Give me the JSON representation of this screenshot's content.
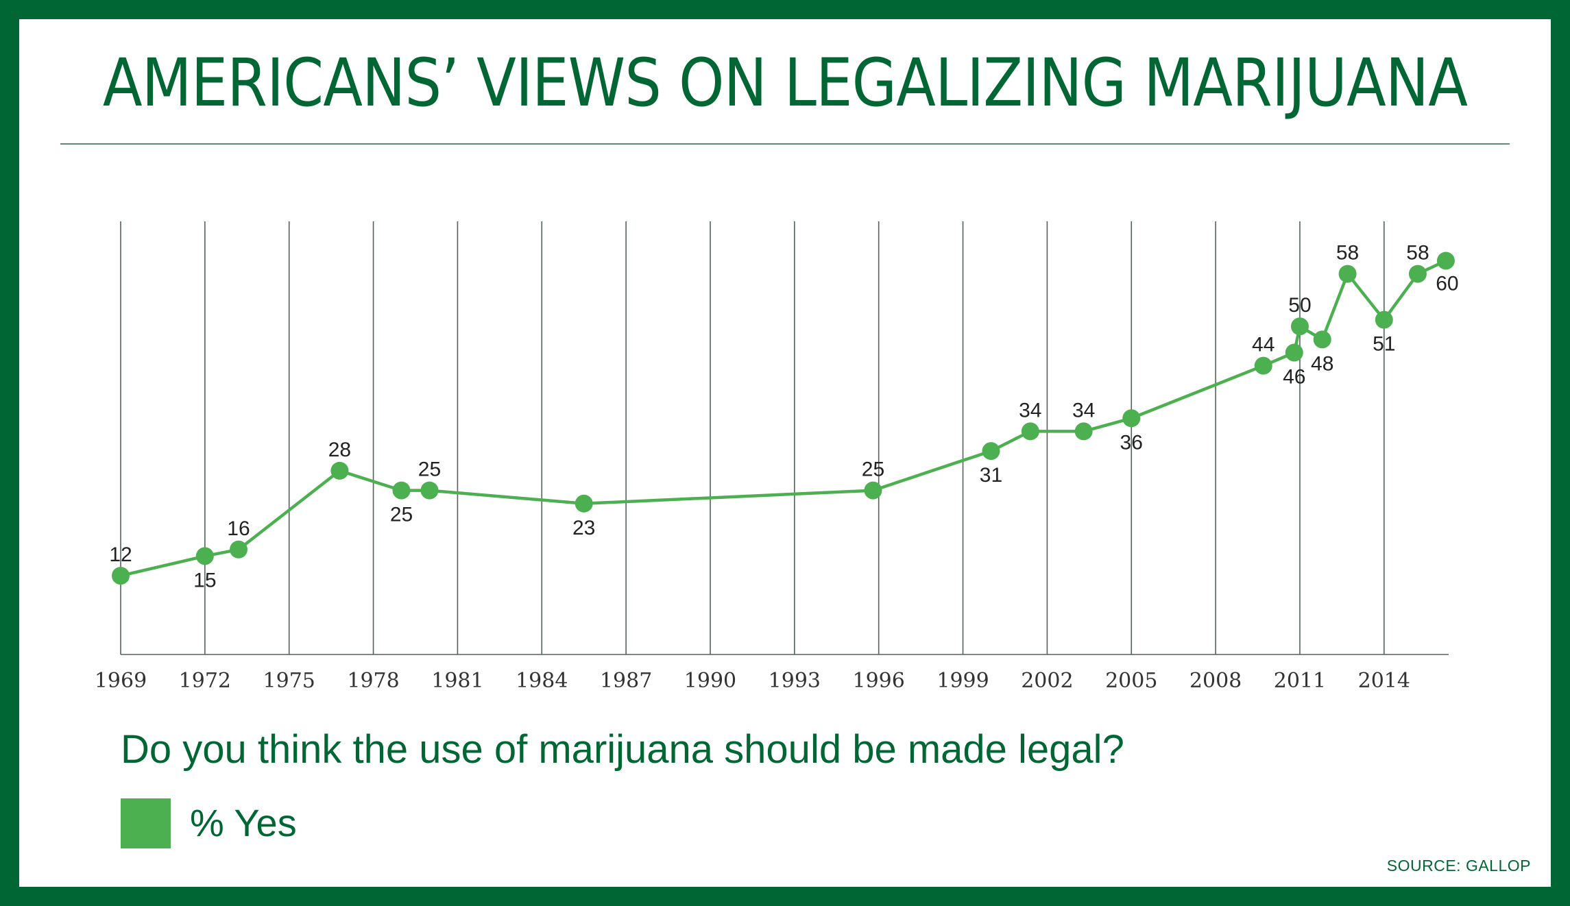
{
  "title": "AMERICANS’ VIEWS ON LEGALIZING MARIJUANA",
  "question": "Do you think the use of marijuana should be made legal?",
  "legend": {
    "label": "% Yes",
    "color": "#4caf50"
  },
  "source": "SOURCE: GALLOP",
  "colors": {
    "frame": "#006633",
    "line": "#4caf50",
    "grid": "#54615a",
    "text": "#006633"
  },
  "chart_data": {
    "type": "line",
    "title": "AMERICANS’ VIEWS ON LEGALIZING MARIJUANA",
    "xlabel": "",
    "ylabel": "",
    "x_ticks": [
      1969,
      1972,
      1975,
      1978,
      1981,
      1984,
      1987,
      1990,
      1993,
      1996,
      1999,
      2002,
      2005,
      2008,
      2011,
      2014
    ],
    "xlim": [
      1969,
      2016.3
    ],
    "ylim": [
      0,
      66
    ],
    "grid": "vertical",
    "legend_position": "bottom-left",
    "series": [
      {
        "name": "% Yes",
        "color": "#4caf50",
        "points": [
          {
            "x": 1969.0,
            "y": 12,
            "label": "12",
            "label_pos": "above"
          },
          {
            "x": 1972.0,
            "y": 15,
            "label": "15",
            "label_pos": "below"
          },
          {
            "x": 1973.2,
            "y": 16,
            "label": "16",
            "label_pos": "above"
          },
          {
            "x": 1976.8,
            "y": 28,
            "label": "28",
            "label_pos": "above"
          },
          {
            "x": 1979.0,
            "y": 25,
            "label": "25",
            "label_pos": "below"
          },
          {
            "x": 1980.0,
            "y": 25,
            "label": "25",
            "label_pos": "above"
          },
          {
            "x": 1985.5,
            "y": 23,
            "label": "23",
            "label_pos": "below"
          },
          {
            "x": 1995.8,
            "y": 25,
            "label": "25",
            "label_pos": "above"
          },
          {
            "x": 2000.0,
            "y": 31,
            "label": "31",
            "label_pos": "below"
          },
          {
            "x": 2001.4,
            "y": 34,
            "label": "34",
            "label_pos": "above"
          },
          {
            "x": 2003.3,
            "y": 34,
            "label": "34",
            "label_pos": "above"
          },
          {
            "x": 2005.0,
            "y": 36,
            "label": "36",
            "label_pos": "below"
          },
          {
            "x": 2009.7,
            "y": 44,
            "label": "44",
            "label_pos": "above"
          },
          {
            "x": 2010.8,
            "y": 46,
            "label": "46",
            "label_pos": "below"
          },
          {
            "x": 2011.0,
            "y": 50,
            "label": "50",
            "label_pos": "above"
          },
          {
            "x": 2011.8,
            "y": 48,
            "label": "48",
            "label_pos": "below"
          },
          {
            "x": 2012.7,
            "y": 58,
            "label": "58",
            "label_pos": "above"
          },
          {
            "x": 2014.0,
            "y": 51,
            "label": "51",
            "label_pos": "below"
          },
          {
            "x": 2015.2,
            "y": 58,
            "label": "58",
            "label_pos": "above"
          },
          {
            "x": 2016.2,
            "y": 60,
            "label": "60",
            "label_pos": "below-right"
          }
        ]
      }
    ]
  }
}
